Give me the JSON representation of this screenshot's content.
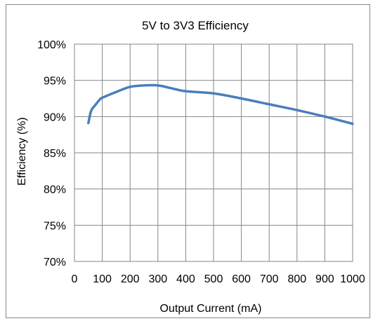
{
  "chart_data": {
    "type": "line",
    "title": "5V to 3V3 Efficiency",
    "xlabel": "Output Current (mA)",
    "ylabel": "Efficiency (%)",
    "xlim": [
      0,
      1000
    ],
    "ylim": [
      70,
      100
    ],
    "x_ticks": [
      0,
      100,
      200,
      300,
      400,
      500,
      600,
      700,
      800,
      900,
      1000
    ],
    "x_tick_labels": [
      "0",
      "100",
      "200",
      "300",
      "400",
      "500",
      "600",
      "700",
      "800",
      "900",
      "1000"
    ],
    "y_ticks": [
      100,
      95,
      90,
      85,
      80,
      75,
      70
    ],
    "y_tick_labels": [
      "100%",
      "95%",
      "90%",
      "85%",
      "80%",
      "75%",
      "70%"
    ],
    "grid": true,
    "legend": "none",
    "series": [
      {
        "color": "#4a7ebb",
        "x": [
          50,
          60,
          75,
          90,
          100,
          150,
          200,
          250,
          300,
          350,
          400,
          500,
          600,
          700,
          800,
          900,
          1000
        ],
        "y": [
          89.1,
          90.8,
          91.6,
          92.3,
          92.6,
          93.4,
          94.1,
          94.3,
          94.3,
          93.9,
          93.5,
          93.2,
          92.5,
          91.7,
          90.9,
          90.0,
          89.0
        ]
      }
    ]
  }
}
